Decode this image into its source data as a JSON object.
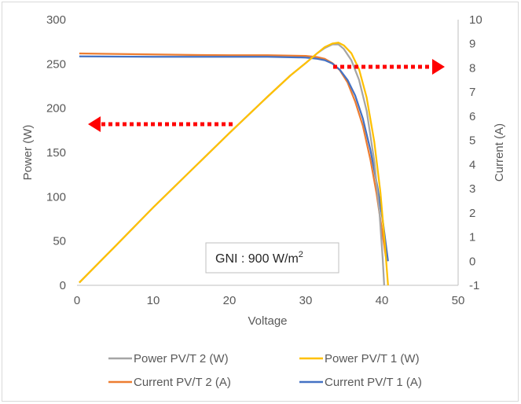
{
  "chart_data": {
    "type": "line",
    "title": "",
    "xlabel": "Voltage",
    "ylabel_left": "Power (W)",
    "ylabel_right": "Current (A)",
    "xlim": [
      0,
      50
    ],
    "ylim_left": [
      0,
      300
    ],
    "ylim_right": [
      -1,
      10
    ],
    "x_ticks": [
      "0",
      "10",
      "20",
      "30",
      "40",
      "50"
    ],
    "y_left_ticks": [
      "0",
      "50",
      "100",
      "150",
      "200",
      "250",
      "300"
    ],
    "y_right_ticks": [
      "-1",
      "0",
      "1",
      "2",
      "3",
      "4",
      "5",
      "6",
      "7",
      "8",
      "9",
      "10"
    ],
    "grid": false,
    "legend_position": "bottom",
    "annotation": {
      "text": "GNI : 900 W/m",
      "superscript": "2"
    },
    "series": [
      {
        "name": "Power PV/T 2 (W)",
        "axis": "left",
        "color": "#a5a5a5",
        "points": [
          [
            0.3,
            3
          ],
          [
            5,
            44
          ],
          [
            10,
            88
          ],
          [
            15,
            130
          ],
          [
            20,
            172
          ],
          [
            25,
            213
          ],
          [
            28,
            237
          ],
          [
            30,
            251
          ],
          [
            31.5,
            262
          ],
          [
            32.5,
            268
          ],
          [
            33.5,
            272
          ],
          [
            34.3,
            272
          ],
          [
            35,
            267
          ],
          [
            36,
            254
          ],
          [
            37,
            232
          ],
          [
            38,
            197
          ],
          [
            39,
            140
          ],
          [
            39.7,
            80
          ],
          [
            40.1,
            30
          ],
          [
            40.3,
            0
          ]
        ]
      },
      {
        "name": "Power PV/T 1 (W)",
        "axis": "left",
        "color": "#ffc000",
        "points": [
          [
            0.3,
            3
          ],
          [
            5,
            44
          ],
          [
            10,
            88
          ],
          [
            15,
            130
          ],
          [
            20,
            172
          ],
          [
            25,
            213
          ],
          [
            28,
            237
          ],
          [
            30,
            251
          ],
          [
            31.5,
            262
          ],
          [
            32.5,
            269
          ],
          [
            33.5,
            273
          ],
          [
            34.3,
            274
          ],
          [
            35,
            271
          ],
          [
            36,
            262
          ],
          [
            37,
            244
          ],
          [
            38,
            212
          ],
          [
            39,
            162
          ],
          [
            39.8,
            105
          ],
          [
            40.4,
            45
          ],
          [
            40.8,
            0
          ]
        ]
      },
      {
        "name": "Current PV/T 2  (A)",
        "axis": "right",
        "color": "#ed7d31",
        "points": [
          [
            0.3,
            8.6
          ],
          [
            5,
            8.58
          ],
          [
            10,
            8.56
          ],
          [
            15,
            8.54
          ],
          [
            20,
            8.53
          ],
          [
            25,
            8.53
          ],
          [
            30,
            8.5
          ],
          [
            31.5,
            8.45
          ],
          [
            32.5,
            8.38
          ],
          [
            33.5,
            8.2
          ],
          [
            34.5,
            7.9
          ],
          [
            35.5,
            7.4
          ],
          [
            36.5,
            6.6
          ],
          [
            37.5,
            5.6
          ],
          [
            38.5,
            4.2
          ],
          [
            39.3,
            2.8
          ],
          [
            40,
            1.3
          ],
          [
            40.5,
            0.2
          ]
        ]
      },
      {
        "name": "Current PV/T 1  (A)",
        "axis": "right",
        "color": "#4472c4",
        "points": [
          [
            0.3,
            8.48
          ],
          [
            5,
            8.47
          ],
          [
            10,
            8.46
          ],
          [
            15,
            8.46
          ],
          [
            20,
            8.46
          ],
          [
            25,
            8.46
          ],
          [
            30,
            8.43
          ],
          [
            31.5,
            8.38
          ],
          [
            32.5,
            8.32
          ],
          [
            33.5,
            8.18
          ],
          [
            34.5,
            7.92
          ],
          [
            35.5,
            7.5
          ],
          [
            36.5,
            6.85
          ],
          [
            37.5,
            5.9
          ],
          [
            38.5,
            4.6
          ],
          [
            39.4,
            3.1
          ],
          [
            40.1,
            1.7
          ],
          [
            40.6,
            0.5
          ],
          [
            40.8,
            0.0
          ]
        ]
      }
    ],
    "arrows": [
      {
        "direction": "left",
        "color": "#ff0000"
      },
      {
        "direction": "right",
        "color": "#ff0000"
      }
    ]
  }
}
